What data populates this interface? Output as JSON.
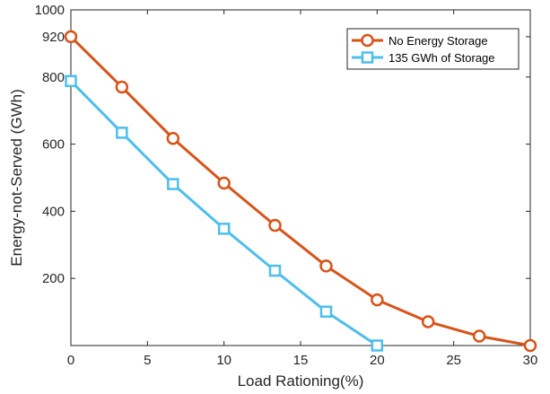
{
  "chart_data": {
    "type": "line",
    "title": "",
    "xlabel": "Load Rationing(%)",
    "ylabel": "Energy-not-Served (GWh)",
    "xlim": [
      0,
      30
    ],
    "ylim": [
      0,
      1000
    ],
    "xticks": [
      0,
      5,
      10,
      15,
      20,
      25,
      30
    ],
    "yticks": [
      200,
      400,
      600,
      800,
      920,
      1000
    ],
    "grid": false,
    "legend_position": "top-right",
    "series": [
      {
        "name": "No Energy Storage",
        "color": "#d95319",
        "marker": "circle",
        "x": [
          0,
          3.33,
          6.67,
          10,
          13.33,
          16.67,
          20,
          23.33,
          26.67,
          30
        ],
        "y": [
          920,
          770,
          617,
          484,
          358,
          237,
          136,
          71,
          28,
          0
        ]
      },
      {
        "name": "135 GWh of Storage",
        "color": "#4dbeee",
        "marker": "square",
        "x": [
          0,
          3.33,
          6.67,
          10,
          13.33,
          16.67,
          20
        ],
        "y": [
          788,
          634,
          481,
          348,
          223,
          101,
          0
        ]
      }
    ]
  }
}
